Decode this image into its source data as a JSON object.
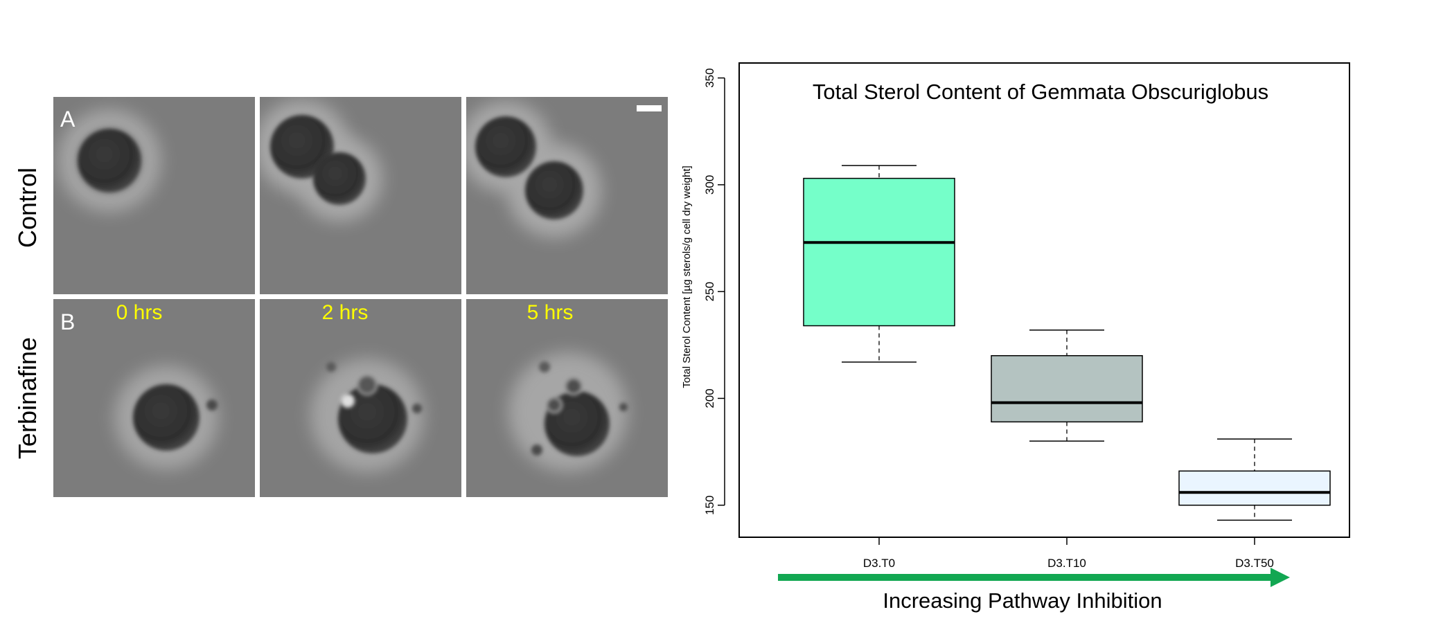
{
  "micrographs": {
    "row_labels": [
      "Control",
      "Terbinafine"
    ],
    "panel_letters": [
      "A",
      "B"
    ],
    "time_labels": [
      "0 hrs",
      "2 hrs",
      "5 hrs"
    ],
    "label_color": "#ffff00"
  },
  "chart_data": {
    "type": "box",
    "title": "Total Sterol Content of Gemmata Obscuriglobus",
    "ylabel": "Total Sterol Content [µg sterols/g cell dry weight]",
    "xlabel": "",
    "categories": [
      "D3.T0",
      "D3.T10",
      "D3.T50"
    ],
    "ylim": [
      135,
      357
    ],
    "yticks": [
      150,
      200,
      250,
      300,
      350
    ],
    "grid": false,
    "boxes": [
      {
        "category": "D3.T0",
        "whisker_low": 217,
        "q1": 234,
        "median": 273,
        "q3": 303,
        "whisker_high": 309,
        "fill": "#75ffc9"
      },
      {
        "category": "D3.T10",
        "whisker_low": 180,
        "q1": 189,
        "median": 198,
        "q3": 220,
        "whisker_high": 232,
        "fill": "#b4c3c1"
      },
      {
        "category": "D3.T50",
        "whisker_low": 143,
        "q1": 150,
        "median": 156,
        "q3": 166,
        "whisker_high": 181,
        "fill": "#eaf5ff"
      }
    ]
  },
  "arrow": {
    "label": "Increasing Pathway Inhibition",
    "color": "#12a752"
  }
}
